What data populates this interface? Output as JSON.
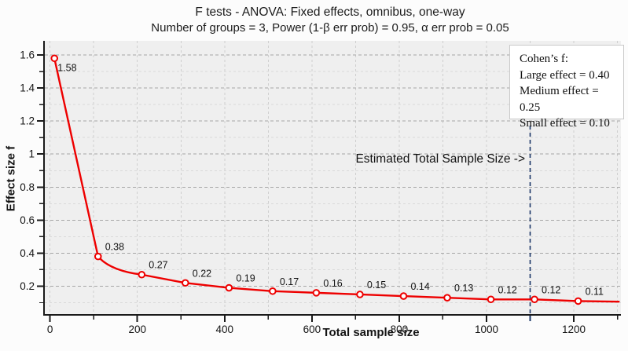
{
  "chart_data": {
    "type": "line",
    "title": "F tests - ANOVA: Fixed effects, omnibus, one-way",
    "subtitle": "Number of groups = 3, Power (1-β err prob) = 0.95, α err prob = 0.05",
    "xlabel": "Total sample size",
    "ylabel": "Effect size f",
    "x": [
      10,
      110,
      210,
      310,
      410,
      510,
      610,
      710,
      810,
      910,
      1010,
      1110,
      1210
    ],
    "y": [
      1.58,
      0.38,
      0.27,
      0.22,
      0.19,
      0.17,
      0.16,
      0.15,
      0.14,
      0.13,
      0.12,
      0.12,
      0.11
    ],
    "point_labels": [
      "1.58",
      "0.38",
      "0.27",
      "0.22",
      "0.19",
      "0.17",
      "0.16",
      "0.15",
      "0.14",
      "0.13",
      "0.12",
      "0.12",
      "0.11"
    ],
    "line_end": {
      "x": 1305,
      "y": 0.106
    },
    "xlim": [
      -12,
      1308
    ],
    "ylim": [
      0.031,
      1.686
    ],
    "xticks_major": [
      0,
      200,
      400,
      600,
      800,
      1000,
      1200
    ],
    "xtick_labels": [
      "0",
      "200",
      "400",
      "600",
      "800",
      "1000",
      "1200"
    ],
    "xticks_minor": [
      100,
      300,
      500,
      700,
      900,
      1100,
      1300
    ],
    "yticks_major": [
      0.2,
      0.4,
      0.6,
      0.8,
      1.0,
      1.2,
      1.4,
      1.6
    ],
    "ytick_labels": [
      "0.2",
      "0.4",
      "0.6",
      "0.8",
      "1",
      "1.2",
      "1.4",
      "1.6"
    ],
    "yticks_minor": [
      0.1,
      0.3,
      0.5,
      0.7,
      0.9,
      1.1,
      1.3,
      1.5
    ],
    "grid": {
      "on": true,
      "style": "dashed",
      "vertical_every": 100,
      "horizontal_major_step": 0.2,
      "horizontal_minor_step": 0.1
    },
    "series_color": "#ee0000",
    "marker_style": {
      "shape": "open-circle",
      "fill": "#ffffff",
      "stroke": "#ee0000"
    },
    "threshold_line": {
      "x": 1100,
      "color": "#1b3768",
      "style": "dashed",
      "label": "Estimated Total Sample Size ->"
    },
    "legend": {
      "position": "top-right",
      "title": "Cohen’s f:",
      "items": [
        "Large effect = 0.40",
        "Medium effect = 0.25",
        "Small effect = 0.10"
      ]
    },
    "colors": {
      "plot_background": "#efefef",
      "page_background": "#fcfcfc",
      "axis": "#1a1a1a",
      "grid_major": "#a6a6a6",
      "grid_minor": "#d9d9d9",
      "grid_vertical": "#cfcfcf"
    }
  }
}
